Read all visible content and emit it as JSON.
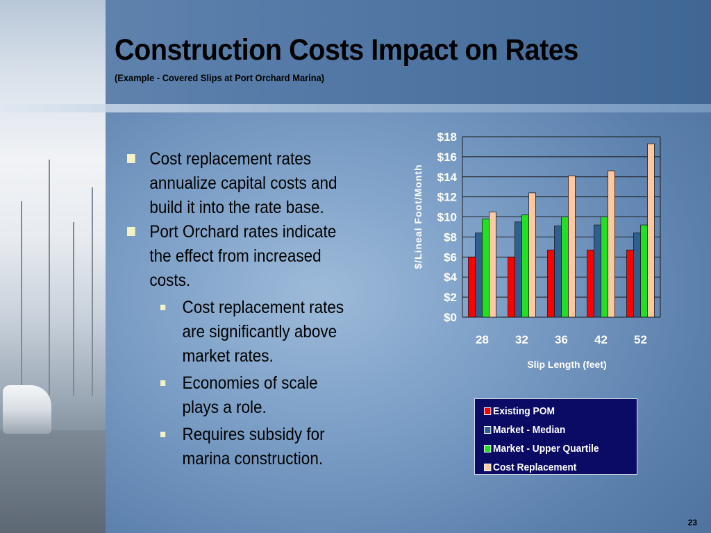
{
  "slide": {
    "title": "Construction Costs Impact on Rates",
    "subtitle": "(Example - Covered Slips at Port Orchard Marina)",
    "page_number": "23"
  },
  "bullets": [
    {
      "text": "Cost replacement rates annualize capital costs and build it into the rate base.",
      "level": 1
    },
    {
      "text": "Port Orchard rates indicate the effect from increased costs.",
      "level": 1
    },
    {
      "text": "Cost replacement rates are significantly above market rates.",
      "level": 2
    },
    {
      "text": "Economies of scale plays a role.",
      "level": 2
    },
    {
      "text": "Requires subsidy for marina construction.",
      "level": 2
    }
  ],
  "colors": {
    "Existing POM": "#ff0000",
    "Market - Median": "#2f5f8f",
    "Market - Upper Quartile": "#22e022",
    "Cost Replacement": "#ffc8a0"
  },
  "chart_data": {
    "type": "bar",
    "categories": [
      "28",
      "32",
      "36",
      "42",
      "52"
    ],
    "series": [
      {
        "name": "Existing POM",
        "values": [
          6.0,
          6.0,
          6.7,
          6.7,
          6.7
        ]
      },
      {
        "name": "Market - Median",
        "values": [
          8.4,
          9.5,
          9.1,
          9.2,
          8.4
        ]
      },
      {
        "name": "Market - Upper Quartile",
        "values": [
          9.8,
          10.2,
          10.0,
          10.0,
          9.2
        ]
      },
      {
        "name": "Cost Replacement",
        "values": [
          10.5,
          12.4,
          14.1,
          14.6,
          17.3
        ]
      }
    ],
    "yticks": [
      "$0",
      "$2",
      "$4",
      "$6",
      "$8",
      "$10",
      "$12",
      "$14",
      "$16",
      "$18"
    ],
    "ylim": [
      0,
      18
    ],
    "xlabel": "Slip Length (feet)",
    "ylabel": "$/Lineal Foot/Month",
    "grid": true,
    "legend_position": "bottom-right"
  }
}
